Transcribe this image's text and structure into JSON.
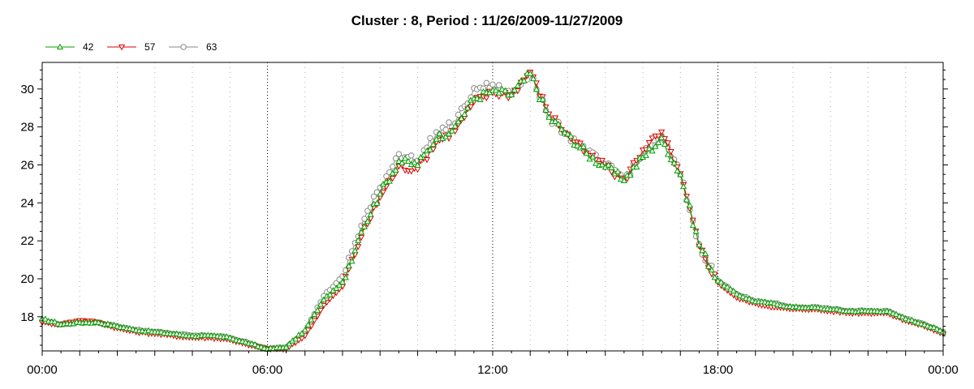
{
  "chart_data": {
    "type": "line",
    "title": "Cluster : 8, Period : 11/26/2009-11/27/2009",
    "xlabel": "",
    "ylabel": "",
    "x_tick_labels": [
      "00:00",
      "06:00",
      "12:00",
      "18:00",
      "00:00"
    ],
    "x_hours": [
      0,
      0.5,
      1,
      1.5,
      2,
      2.5,
      3,
      3.5,
      4,
      4.5,
      5,
      5.5,
      6,
      6.5,
      7,
      7.5,
      8,
      8.5,
      9,
      9.5,
      10,
      10.5,
      11,
      11.5,
      12,
      12.5,
      13,
      13.5,
      14,
      14.5,
      15,
      15.5,
      16,
      16.5,
      17,
      17.5,
      18,
      18.5,
      19,
      19.5,
      20,
      20.5,
      21,
      21.5,
      22,
      22.5,
      23,
      23.5,
      24
    ],
    "xlim": [
      0,
      24
    ],
    "y_ticks": [
      18,
      20,
      22,
      24,
      26,
      28,
      30
    ],
    "ylim": [
      16.2,
      31.4
    ],
    "grid": "dotted",
    "legend_position": "top-left",
    "series": [
      {
        "name": "42",
        "color": "#00a000",
        "marker": "triangle-up",
        "values": [
          17.9,
          17.6,
          17.7,
          17.7,
          17.5,
          17.3,
          17.2,
          17.1,
          17.0,
          17.0,
          16.9,
          16.6,
          16.3,
          16.4,
          17.3,
          18.9,
          19.8,
          22.5,
          24.5,
          26.2,
          26.0,
          27.4,
          28.0,
          29.5,
          29.9,
          29.7,
          30.8,
          28.5,
          27.6,
          26.6,
          25.9,
          25.2,
          26.4,
          27.4,
          25.5,
          21.8,
          19.9,
          19.2,
          18.8,
          18.7,
          18.5,
          18.5,
          18.4,
          18.3,
          18.3,
          18.3,
          17.9,
          17.6,
          17.2
        ]
      },
      {
        "name": "57",
        "color": "#e00000",
        "marker": "triangle-down",
        "values": [
          17.7,
          17.6,
          17.8,
          17.7,
          17.4,
          17.2,
          17.1,
          17.0,
          16.9,
          16.9,
          16.8,
          16.5,
          16.3,
          16.3,
          17.0,
          18.6,
          19.6,
          22.2,
          24.3,
          25.9,
          25.8,
          27.2,
          27.8,
          29.3,
          29.8,
          29.7,
          30.9,
          28.7,
          27.6,
          26.6,
          25.9,
          25.2,
          26.8,
          27.7,
          25.5,
          21.7,
          19.8,
          19.0,
          18.7,
          18.5,
          18.4,
          18.4,
          18.3,
          18.2,
          18.2,
          18.2,
          17.8,
          17.5,
          17.1
        ]
      },
      {
        "name": "63",
        "color": "#8a8a8a",
        "marker": "circle",
        "values": [
          17.8,
          17.6,
          17.7,
          17.7,
          17.5,
          17.3,
          17.2,
          17.1,
          17.0,
          17.0,
          16.9,
          16.6,
          16.3,
          16.4,
          17.2,
          19.1,
          20.1,
          22.8,
          24.8,
          26.6,
          26.2,
          27.7,
          28.2,
          30.0,
          30.2,
          29.7,
          30.9,
          28.5,
          27.6,
          26.7,
          26.0,
          25.3,
          26.5,
          27.5,
          25.5,
          21.8,
          19.9,
          19.2,
          18.8,
          18.7,
          18.5,
          18.5,
          18.4,
          18.3,
          18.3,
          18.3,
          17.9,
          17.6,
          17.2
        ]
      }
    ]
  }
}
